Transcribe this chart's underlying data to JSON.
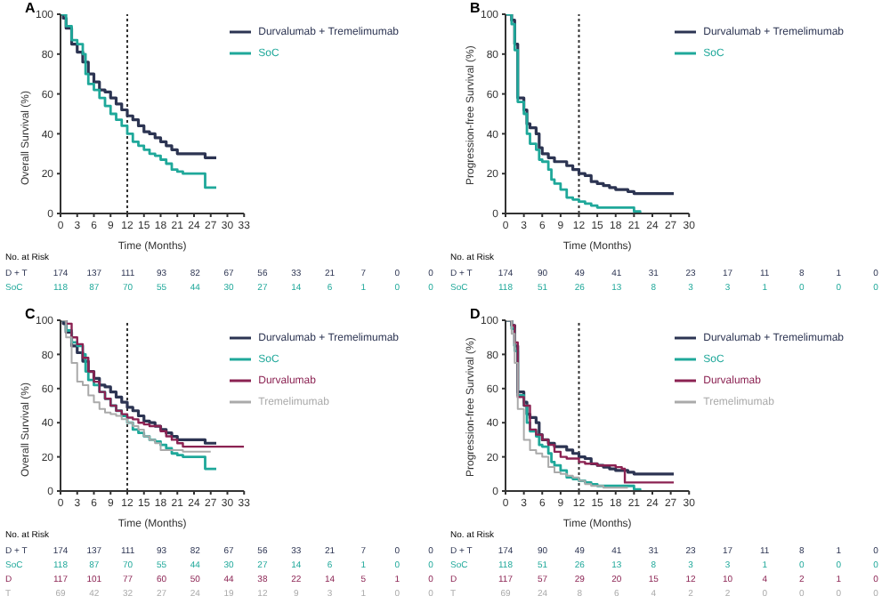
{
  "chart_data": [
    {
      "type": "step",
      "title": "A",
      "xlabel": "Time (Months)",
      "ylabel": "Overall Survival (%)",
      "xlim": [
        0,
        33
      ],
      "xticks": [
        0,
        3,
        6,
        9,
        12,
        15,
        18,
        21,
        24,
        27,
        30,
        33
      ],
      "ylim": [
        0,
        100
      ],
      "yticks": [
        0,
        20,
        40,
        60,
        80,
        100
      ],
      "grid": false,
      "legend": "top right",
      "marker": "none",
      "line_style": "solid",
      "series": [
        {
          "name": "Durvalumab + Tremelimumab",
          "color": "#2c3452",
          "x": [
            0,
            0.5,
            1,
            2,
            3,
            4,
            5,
            6,
            7,
            8,
            9,
            10,
            11,
            12,
            13,
            14,
            15,
            16,
            17,
            18,
            19,
            20,
            21,
            22,
            24,
            25,
            26,
            28
          ],
          "values": [
            100,
            98,
            93,
            85,
            81,
            76,
            70,
            66,
            62,
            61,
            58,
            55,
            52,
            49,
            47,
            44,
            41,
            40,
            38,
            36,
            34,
            32,
            30,
            30,
            30,
            30,
            28,
            28
          ]
        },
        {
          "name": "SoC",
          "color": "#1fa89a",
          "x": [
            0,
            1,
            2,
            3,
            4,
            4.5,
            5,
            6,
            7,
            8,
            9,
            10,
            11,
            12,
            13,
            14,
            15,
            16,
            17,
            18,
            19,
            20,
            21,
            22,
            23,
            25,
            26,
            28
          ],
          "values": [
            100,
            94,
            87,
            85,
            80,
            70,
            65,
            62,
            58,
            54,
            50,
            47,
            44,
            40,
            36,
            34,
            32,
            30,
            29,
            27,
            25,
            22,
            21,
            20,
            20,
            20,
            13,
            13
          ]
        }
      ],
      "ref_lines": [
        {
          "axis": "x",
          "value": 12,
          "line_style": "dotted",
          "color": "#333333"
        }
      ],
      "annotations": [
        "No. at Risk",
        "D + T",
        "174 137 111 93 82 67 56 33 21 7 0 0",
        "SoC",
        "118 87 70 55 44 30 27 14 6 1 0 0"
      ]
    },
    {
      "type": "step",
      "title": "B",
      "xlabel": "Time (Months)",
      "ylabel": "Progression-free Survival (%)",
      "xlim": [
        0,
        30
      ],
      "xticks": [
        0,
        3,
        6,
        9,
        12,
        15,
        18,
        21,
        24,
        27,
        30
      ],
      "ylim": [
        0,
        100
      ],
      "yticks": [
        0,
        20,
        40,
        60,
        80,
        100
      ],
      "grid": false,
      "legend": "top right",
      "marker": "none",
      "line_style": "solid",
      "series": [
        {
          "name": "Durvalumab + Tremelimumab",
          "color": "#2c3452",
          "x": [
            0,
            1,
            1.5,
            2,
            3,
            3.5,
            4,
            5,
            5.5,
            6,
            7,
            8,
            9,
            10,
            11,
            12,
            13,
            14,
            15,
            16,
            17,
            18,
            19,
            20,
            21,
            23,
            25,
            27.5
          ],
          "values": [
            100,
            97,
            85,
            58,
            52,
            45,
            43,
            40,
            33,
            30,
            28,
            26,
            26,
            24,
            22,
            20,
            19,
            16,
            15,
            14,
            13,
            12,
            12,
            11,
            10,
            10,
            10,
            10
          ]
        },
        {
          "name": "SoC",
          "color": "#1fa89a",
          "x": [
            0,
            1,
            1.5,
            2,
            3,
            3.5,
            4,
            5,
            5.5,
            6,
            7,
            7.5,
            8,
            9,
            10,
            11,
            12,
            13,
            14,
            15,
            16,
            18,
            19,
            20,
            21,
            22
          ],
          "values": [
            100,
            95,
            82,
            56,
            50,
            40,
            35,
            32,
            27,
            26,
            22,
            17,
            15,
            12,
            8,
            7,
            6,
            5,
            4,
            3,
            3,
            3,
            3,
            3,
            1,
            0
          ]
        }
      ],
      "ref_lines": [
        {
          "axis": "x",
          "value": 12,
          "line_style": "dotted",
          "color": "#333333"
        }
      ],
      "annotations": [
        "No. at Risk",
        "D + T",
        "174 90 49 41 31 23 17 11 8 1 0",
        "SoC",
        "118 51 26 13 8 3 3 1 0 0 0"
      ]
    },
    {
      "type": "step",
      "title": "C",
      "xlabel": "Time (Months)",
      "ylabel": "Overall Survival (%)",
      "xlim": [
        0,
        33
      ],
      "xticks": [
        0,
        3,
        6,
        9,
        12,
        15,
        18,
        21,
        24,
        27,
        30,
        33
      ],
      "ylim": [
        0,
        100
      ],
      "yticks": [
        0,
        20,
        40,
        60,
        80,
        100
      ],
      "grid": false,
      "legend": "top right",
      "marker": "none",
      "line_style": "solid",
      "series": [
        {
          "name": "Durvalumab + Tremelimumab",
          "color": "#2c3452",
          "x": [
            0,
            0.5,
            1,
            2,
            3,
            4,
            5,
            6,
            7,
            8,
            9,
            10,
            11,
            12,
            13,
            14,
            15,
            16,
            17,
            18,
            19,
            20,
            21,
            22,
            24,
            25,
            26,
            28
          ],
          "values": [
            100,
            98,
            93,
            85,
            81,
            76,
            70,
            66,
            62,
            61,
            58,
            55,
            52,
            49,
            47,
            44,
            41,
            40,
            38,
            36,
            34,
            32,
            30,
            30,
            30,
            30,
            28,
            28
          ]
        },
        {
          "name": "SoC",
          "color": "#1fa89a",
          "x": [
            0,
            1,
            2,
            3,
            4,
            4.5,
            5,
            6,
            7,
            8,
            9,
            10,
            11,
            12,
            13,
            14,
            15,
            16,
            17,
            18,
            19,
            20,
            21,
            22,
            23,
            25,
            26,
            28
          ],
          "values": [
            100,
            94,
            87,
            85,
            80,
            70,
            65,
            62,
            58,
            54,
            50,
            47,
            44,
            40,
            36,
            34,
            32,
            30,
            29,
            27,
            25,
            22,
            21,
            20,
            20,
            20,
            13,
            13
          ]
        },
        {
          "name": "Durvalumab",
          "color": "#8b2252",
          "x": [
            0,
            1,
            2,
            3,
            4,
            5,
            6,
            7,
            8,
            9,
            10,
            11,
            12,
            13,
            14,
            15,
            16,
            18,
            19,
            20,
            21,
            22,
            24,
            27,
            33
          ],
          "values": [
            100,
            98,
            90,
            86,
            78,
            70,
            64,
            58,
            54,
            50,
            47,
            45,
            43,
            42,
            40,
            39,
            38,
            35,
            32,
            30,
            28,
            26,
            26,
            26,
            26
          ]
        },
        {
          "name": "Tremelimumab",
          "color": "#aaaaaa",
          "x": [
            0,
            1,
            2,
            3,
            4,
            5,
            6,
            7,
            8,
            9,
            10,
            11,
            12,
            13,
            14,
            15,
            16,
            17,
            18,
            20,
            22,
            24,
            27
          ],
          "values": [
            100,
            90,
            75,
            64,
            62,
            56,
            52,
            48,
            46,
            45,
            44,
            42,
            40,
            38,
            36,
            32,
            30,
            28,
            24,
            24,
            23,
            23,
            23
          ]
        }
      ],
      "ref_lines": [
        {
          "axis": "x",
          "value": 12,
          "line_style": "dotted",
          "color": "#333333"
        }
      ],
      "annotations": [
        "No. at Risk",
        "D + T",
        "174 137 111 93 82 67 56 33 21 7 0 0",
        "SoC",
        "118 87 70 55 44 30 27 14 6 1 0 0",
        "D",
        "117 101 77 60 50 44 38 22 14 5 1 0",
        "T",
        "69 42 32 27 24 19 12 9 3 1 0 0"
      ]
    },
    {
      "type": "step",
      "title": "D",
      "xlabel": "Time (Months)",
      "ylabel": "Progression-free Survival (%)",
      "xlim": [
        0,
        30
      ],
      "xticks": [
        0,
        3,
        6,
        9,
        12,
        15,
        18,
        21,
        24,
        27,
        30
      ],
      "ylim": [
        0,
        100
      ],
      "yticks": [
        0,
        20,
        40,
        60,
        80,
        100
      ],
      "grid": false,
      "legend": "top right",
      "marker": "none",
      "line_style": "solid",
      "series": [
        {
          "name": "Durvalumab + Tremelimumab",
          "color": "#2c3452",
          "x": [
            0,
            1,
            1.5,
            2,
            3,
            3.5,
            4,
            5,
            5.5,
            6,
            7,
            8,
            9,
            10,
            11,
            12,
            13,
            14,
            15,
            16,
            17,
            18,
            19,
            20,
            21,
            23,
            25,
            27.5
          ],
          "values": [
            100,
            97,
            85,
            58,
            52,
            45,
            43,
            40,
            33,
            30,
            28,
            26,
            26,
            24,
            22,
            20,
            19,
            16,
            15,
            14,
            13,
            12,
            12,
            11,
            10,
            10,
            10,
            10
          ]
        },
        {
          "name": "SoC",
          "color": "#1fa89a",
          "x": [
            0,
            1,
            1.5,
            2,
            3,
            3.5,
            4,
            5,
            5.5,
            6,
            7,
            7.5,
            8,
            9,
            10,
            11,
            12,
            13,
            14,
            15,
            16,
            18,
            19,
            20,
            21,
            22
          ],
          "values": [
            100,
            95,
            82,
            56,
            50,
            40,
            35,
            32,
            27,
            26,
            22,
            17,
            15,
            12,
            8,
            7,
            6,
            5,
            4,
            3,
            3,
            3,
            3,
            3,
            1,
            0
          ]
        },
        {
          "name": "Durvalumab",
          "color": "#8b2252",
          "x": [
            0,
            1,
            1.5,
            2,
            3,
            4,
            5,
            6,
            7,
            8,
            9,
            10,
            12,
            13,
            15,
            18,
            19,
            19.5,
            21,
            24,
            27.5
          ],
          "values": [
            100,
            97,
            87,
            55,
            50,
            36,
            33,
            30,
            27,
            23,
            20,
            19,
            17,
            16,
            15,
            14,
            13,
            5,
            5,
            5,
            5
          ]
        },
        {
          "name": "Tremelimumab",
          "color": "#aaaaaa",
          "x": [
            0,
            1,
            1.5,
            2,
            3,
            4,
            5,
            6,
            7,
            8,
            9,
            10,
            11,
            12,
            13,
            14,
            16,
            18,
            20
          ],
          "values": [
            100,
            92,
            75,
            48,
            30,
            24,
            22,
            20,
            14,
            11,
            10,
            9,
            8,
            6,
            4,
            3,
            2,
            2,
            2
          ]
        }
      ],
      "ref_lines": [
        {
          "axis": "x",
          "value": 12,
          "line_style": "dotted",
          "color": "#333333"
        }
      ],
      "annotations": [
        "No. at Risk",
        "D + T",
        "174 90 49 41 31 23 17 11 8 1 0",
        "SoC",
        "118 51 26 13 8 3 3 1 0 0 0",
        "D",
        "117 57 29 20 15 12 10 4 2 1 0",
        "T",
        "69 24 8 6 4 2 2 0 0 0 0"
      ]
    }
  ]
}
